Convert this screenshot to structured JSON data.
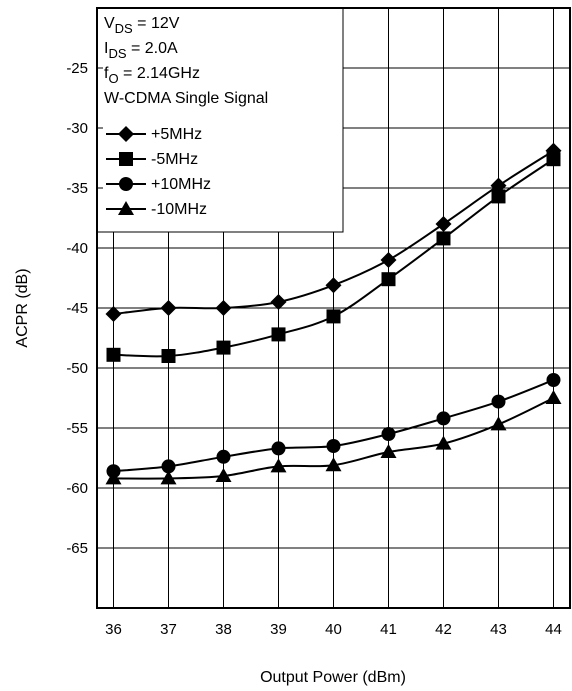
{
  "chart_data": {
    "type": "line",
    "xlabel": "Output Power (dBm)",
    "ylabel": "ACPR (dB)",
    "xlim": [
      35.7,
      44.3
    ],
    "ylim": [
      -70,
      -20
    ],
    "x_ticks": [
      36,
      37,
      38,
      39,
      40,
      41,
      42,
      43,
      44
    ],
    "y_ticks": [
      -25,
      -30,
      -35,
      -40,
      -45,
      -50,
      -55,
      -60,
      -65
    ],
    "grid": true,
    "legend_position": "top-left",
    "conditions": [
      {
        "pre": "V",
        "sub": "DS",
        "post": " = 12V"
      },
      {
        "pre": "I",
        "sub": "DS",
        "post": " = 2.0A"
      },
      {
        "pre": "f",
        "sub": "O",
        "post": " = 2.14GHz"
      },
      {
        "pre": "W-CDMA Single Signal",
        "sub": "",
        "post": ""
      }
    ],
    "x": [
      36,
      37,
      38,
      39,
      40,
      41,
      42,
      43,
      44
    ],
    "series": [
      {
        "name": "+5MHz",
        "marker": "diamond",
        "values": [
          -45.5,
          -45.0,
          -45.0,
          -44.5,
          -43.1,
          -41.0,
          -38.0,
          -34.8,
          -31.9
        ]
      },
      {
        "name": "-5MHz",
        "marker": "square",
        "values": [
          -48.9,
          -49.0,
          -48.3,
          -47.2,
          -45.7,
          -42.6,
          -39.2,
          -35.7,
          -32.6
        ]
      },
      {
        "name": "+10MHz",
        "marker": "circle",
        "values": [
          -58.6,
          -58.2,
          -57.4,
          -56.7,
          -56.5,
          -55.5,
          -54.2,
          -52.8,
          -51.0
        ]
      },
      {
        "name": "-10MHz",
        "marker": "triangle",
        "values": [
          -59.2,
          -59.2,
          -59.0,
          -58.2,
          -58.1,
          -57.0,
          -56.3,
          -54.7,
          -52.5
        ]
      }
    ]
  }
}
